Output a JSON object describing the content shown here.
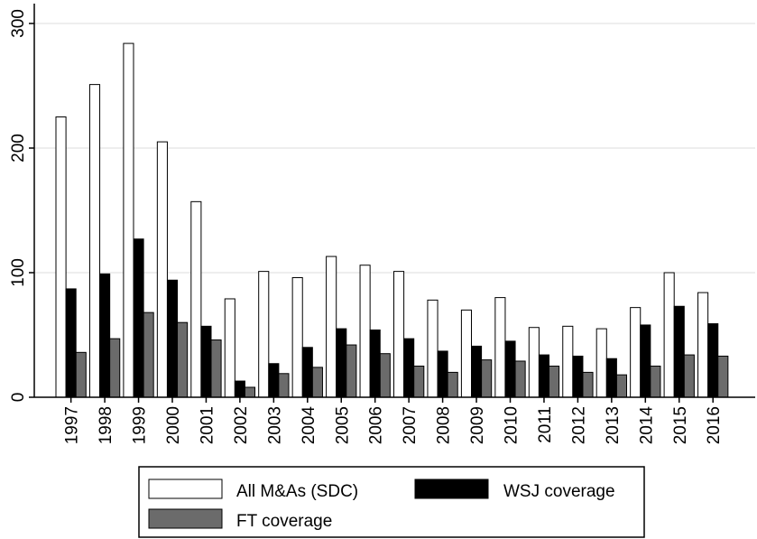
{
  "chart_data": {
    "type": "bar",
    "title": "",
    "xlabel": "",
    "ylabel": "",
    "ylim": [
      0,
      300
    ],
    "yticks": [
      0,
      100,
      200,
      300
    ],
    "grid": "horizontal",
    "legend_position": "bottom",
    "categories": [
      "1997",
      "1998",
      "1999",
      "2000",
      "2001",
      "2002",
      "2003",
      "2004",
      "2005",
      "2006",
      "2007",
      "2008",
      "2009",
      "2010",
      "2011",
      "2012",
      "2013",
      "2014",
      "2015",
      "2016"
    ],
    "series": [
      {
        "name": "All M&As (SDC)",
        "color": "#ffffff",
        "values": [
          225,
          251,
          284,
          205,
          157,
          79,
          101,
          96,
          113,
          106,
          101,
          78,
          70,
          80,
          56,
          57,
          55,
          72,
          100,
          84
        ]
      },
      {
        "name": "WSJ coverage",
        "color": "#000000",
        "values": [
          87,
          99,
          127,
          94,
          57,
          13,
          27,
          40,
          55,
          54,
          47,
          37,
          41,
          45,
          34,
          33,
          31,
          58,
          73,
          59
        ]
      },
      {
        "name": "FT coverage",
        "color": "#6b6b6b",
        "values": [
          36,
          47,
          68,
          60,
          46,
          8,
          19,
          24,
          42,
          35,
          25,
          20,
          30,
          29,
          25,
          20,
          18,
          25,
          34,
          33
        ]
      }
    ]
  }
}
